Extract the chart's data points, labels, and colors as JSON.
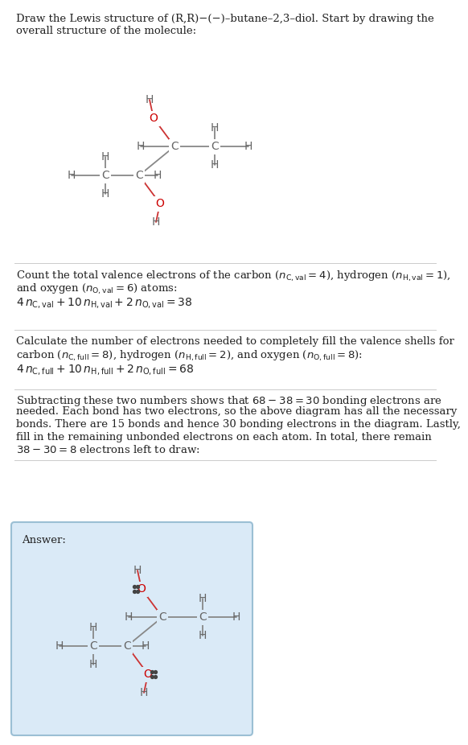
{
  "bg_color": "#ffffff",
  "answer_bg_color": "#daeaf7",
  "answer_border_color": "#9bbfd4",
  "text_color": "#222222",
  "atom_C_color": "#666666",
  "atom_O_color": "#cc0000",
  "atom_H_color": "#666666",
  "bond_color": "#888888",
  "bond_O_color": "#cc3333",
  "lone_pair_color": "#444444",
  "title_line1": "Draw the Lewis structure of (R,R)−(−)–butane–2,3–diol. Start by drawing the",
  "title_line2": "overall structure of the molecule:",
  "s1_line1": "Count the total valence electrons of the carbon ($n_{\\mathrm{C,val}} = 4$), hydrogen ($n_{\\mathrm{H,val}} = 1$),",
  "s1_line2": "and oxygen ($n_{\\mathrm{O,val}} = 6$) atoms:",
  "s1_line3": "$4\\, n_{\\mathrm{C,val}} + 10\\, n_{\\mathrm{H,val}} + 2\\, n_{\\mathrm{O,val}} = 38$",
  "s2_line1": "Calculate the number of electrons needed to completely fill the valence shells for",
  "s2_line2": "carbon ($n_{\\mathrm{C,full}} = 8$), hydrogen ($n_{\\mathrm{H,full}} = 2$), and oxygen ($n_{\\mathrm{O,full}} = 8$):",
  "s2_line3": "$4\\, n_{\\mathrm{C,full}} + 10\\, n_{\\mathrm{H,full}} + 2\\, n_{\\mathrm{O,full}} = 68$",
  "s3_line1": "Subtracting these two numbers shows that $68 - 38 = 30$ bonding electrons are",
  "s3_line2": "needed. Each bond has two electrons, so the above diagram has all the necessary",
  "s3_line3": "bonds. There are 15 bonds and hence 30 bonding electrons in the diagram. Lastly,",
  "s3_line4": "fill in the remaining unbonded electrons on each atom. In total, there remain",
  "s3_line5": "$38 - 30 = 8$ electrons left to draw:",
  "answer_label": "Answer:"
}
